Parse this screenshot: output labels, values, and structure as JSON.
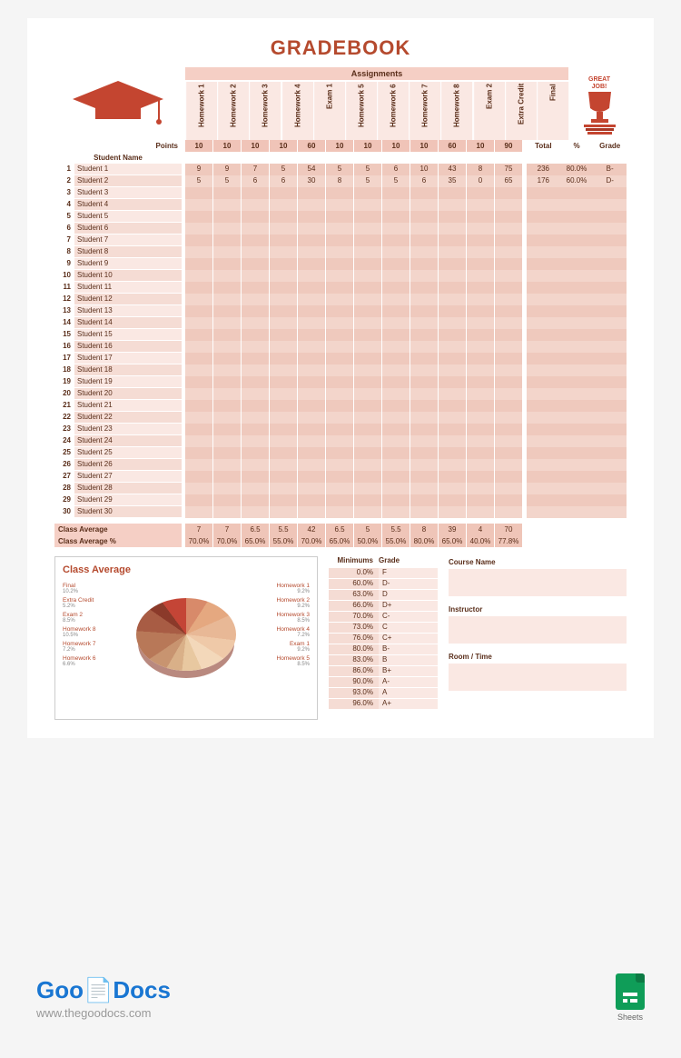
{
  "title": "GRADEBOOK",
  "assignments_label": "Assignments",
  "points_label": "Points",
  "student_name_label": "Student Name",
  "total_label": "Total",
  "pct_label": "%",
  "grade_label": "Grade",
  "class_avg_label": "Class Average",
  "class_avg_pct_label": "Class Average %",
  "assignments": [
    "Homework 1",
    "Homework 2",
    "Homework 3",
    "Homework 4",
    "Exam 1",
    "Homework 5",
    "Homework 6",
    "Homework 7",
    "Homework 8",
    "Exam 2",
    "Extra Credit",
    "Final"
  ],
  "points": [
    "10",
    "10",
    "10",
    "10",
    "60",
    "10",
    "10",
    "10",
    "10",
    "60",
    "10",
    "90"
  ],
  "students": [
    {
      "num": "1",
      "name": "Student 1",
      "scores": [
        "9",
        "9",
        "7",
        "5",
        "54",
        "5",
        "5",
        "6",
        "10",
        "43",
        "8",
        "75"
      ],
      "total": "236",
      "pct": "80.0%",
      "grade": "B-"
    },
    {
      "num": "2",
      "name": "Student 2",
      "scores": [
        "5",
        "5",
        "6",
        "6",
        "30",
        "8",
        "5",
        "5",
        "6",
        "35",
        "0",
        "65"
      ],
      "total": "176",
      "pct": "60.0%",
      "grade": "D-"
    },
    {
      "num": "3",
      "name": "Student 3",
      "scores": [
        "",
        "",
        "",
        "",
        "",
        "",
        "",
        "",
        "",
        "",
        "",
        ""
      ],
      "total": "",
      "pct": "",
      "grade": ""
    },
    {
      "num": "4",
      "name": "Student 4",
      "scores": [
        "",
        "",
        "",
        "",
        "",
        "",
        "",
        "",
        "",
        "",
        "",
        ""
      ],
      "total": "",
      "pct": "",
      "grade": ""
    },
    {
      "num": "5",
      "name": "Student 5",
      "scores": [
        "",
        "",
        "",
        "",
        "",
        "",
        "",
        "",
        "",
        "",
        "",
        ""
      ],
      "total": "",
      "pct": "",
      "grade": ""
    },
    {
      "num": "6",
      "name": "Student 6",
      "scores": [
        "",
        "",
        "",
        "",
        "",
        "",
        "",
        "",
        "",
        "",
        "",
        ""
      ],
      "total": "",
      "pct": "",
      "grade": ""
    },
    {
      "num": "7",
      "name": "Student 7",
      "scores": [
        "",
        "",
        "",
        "",
        "",
        "",
        "",
        "",
        "",
        "",
        "",
        ""
      ],
      "total": "",
      "pct": "",
      "grade": ""
    },
    {
      "num": "8",
      "name": "Student 8",
      "scores": [
        "",
        "",
        "",
        "",
        "",
        "",
        "",
        "",
        "",
        "",
        "",
        ""
      ],
      "total": "",
      "pct": "",
      "grade": ""
    },
    {
      "num": "9",
      "name": "Student 9",
      "scores": [
        "",
        "",
        "",
        "",
        "",
        "",
        "",
        "",
        "",
        "",
        "",
        ""
      ],
      "total": "",
      "pct": "",
      "grade": ""
    },
    {
      "num": "10",
      "name": "Student 10",
      "scores": [
        "",
        "",
        "",
        "",
        "",
        "",
        "",
        "",
        "",
        "",
        "",
        ""
      ],
      "total": "",
      "pct": "",
      "grade": ""
    },
    {
      "num": "11",
      "name": "Student 11",
      "scores": [
        "",
        "",
        "",
        "",
        "",
        "",
        "",
        "",
        "",
        "",
        "",
        ""
      ],
      "total": "",
      "pct": "",
      "grade": ""
    },
    {
      "num": "12",
      "name": "Student 12",
      "scores": [
        "",
        "",
        "",
        "",
        "",
        "",
        "",
        "",
        "",
        "",
        "",
        ""
      ],
      "total": "",
      "pct": "",
      "grade": ""
    },
    {
      "num": "13",
      "name": "Student 13",
      "scores": [
        "",
        "",
        "",
        "",
        "",
        "",
        "",
        "",
        "",
        "",
        "",
        ""
      ],
      "total": "",
      "pct": "",
      "grade": ""
    },
    {
      "num": "14",
      "name": "Student 14",
      "scores": [
        "",
        "",
        "",
        "",
        "",
        "",
        "",
        "",
        "",
        "",
        "",
        ""
      ],
      "total": "",
      "pct": "",
      "grade": ""
    },
    {
      "num": "15",
      "name": "Student 15",
      "scores": [
        "",
        "",
        "",
        "",
        "",
        "",
        "",
        "",
        "",
        "",
        "",
        ""
      ],
      "total": "",
      "pct": "",
      "grade": ""
    },
    {
      "num": "16",
      "name": "Student 16",
      "scores": [
        "",
        "",
        "",
        "",
        "",
        "",
        "",
        "",
        "",
        "",
        "",
        ""
      ],
      "total": "",
      "pct": "",
      "grade": ""
    },
    {
      "num": "17",
      "name": "Student 17",
      "scores": [
        "",
        "",
        "",
        "",
        "",
        "",
        "",
        "",
        "",
        "",
        "",
        ""
      ],
      "total": "",
      "pct": "",
      "grade": ""
    },
    {
      "num": "18",
      "name": "Student 18",
      "scores": [
        "",
        "",
        "",
        "",
        "",
        "",
        "",
        "",
        "",
        "",
        "",
        ""
      ],
      "total": "",
      "pct": "",
      "grade": ""
    },
    {
      "num": "19",
      "name": "Student 19",
      "scores": [
        "",
        "",
        "",
        "",
        "",
        "",
        "",
        "",
        "",
        "",
        "",
        ""
      ],
      "total": "",
      "pct": "",
      "grade": ""
    },
    {
      "num": "20",
      "name": "Student 20",
      "scores": [
        "",
        "",
        "",
        "",
        "",
        "",
        "",
        "",
        "",
        "",
        "",
        ""
      ],
      "total": "",
      "pct": "",
      "grade": ""
    },
    {
      "num": "21",
      "name": "Student 21",
      "scores": [
        "",
        "",
        "",
        "",
        "",
        "",
        "",
        "",
        "",
        "",
        "",
        ""
      ],
      "total": "",
      "pct": "",
      "grade": ""
    },
    {
      "num": "22",
      "name": "Student 22",
      "scores": [
        "",
        "",
        "",
        "",
        "",
        "",
        "",
        "",
        "",
        "",
        "",
        ""
      ],
      "total": "",
      "pct": "",
      "grade": ""
    },
    {
      "num": "23",
      "name": "Student 23",
      "scores": [
        "",
        "",
        "",
        "",
        "",
        "",
        "",
        "",
        "",
        "",
        "",
        ""
      ],
      "total": "",
      "pct": "",
      "grade": ""
    },
    {
      "num": "24",
      "name": "Student 24",
      "scores": [
        "",
        "",
        "",
        "",
        "",
        "",
        "",
        "",
        "",
        "",
        "",
        ""
      ],
      "total": "",
      "pct": "",
      "grade": ""
    },
    {
      "num": "25",
      "name": "Student 25",
      "scores": [
        "",
        "",
        "",
        "",
        "",
        "",
        "",
        "",
        "",
        "",
        "",
        ""
      ],
      "total": "",
      "pct": "",
      "grade": ""
    },
    {
      "num": "26",
      "name": "Student 26",
      "scores": [
        "",
        "",
        "",
        "",
        "",
        "",
        "",
        "",
        "",
        "",
        "",
        ""
      ],
      "total": "",
      "pct": "",
      "grade": ""
    },
    {
      "num": "27",
      "name": "Student 27",
      "scores": [
        "",
        "",
        "",
        "",
        "",
        "",
        "",
        "",
        "",
        "",
        "",
        ""
      ],
      "total": "",
      "pct": "",
      "grade": ""
    },
    {
      "num": "28",
      "name": "Student 28",
      "scores": [
        "",
        "",
        "",
        "",
        "",
        "",
        "",
        "",
        "",
        "",
        "",
        ""
      ],
      "total": "",
      "pct": "",
      "grade": ""
    },
    {
      "num": "29",
      "name": "Student 29",
      "scores": [
        "",
        "",
        "",
        "",
        "",
        "",
        "",
        "",
        "",
        "",
        "",
        ""
      ],
      "total": "",
      "pct": "",
      "grade": ""
    },
    {
      "num": "30",
      "name": "Student 30",
      "scores": [
        "",
        "",
        "",
        "",
        "",
        "",
        "",
        "",
        "",
        "",
        "",
        ""
      ],
      "total": "",
      "pct": "",
      "grade": ""
    }
  ],
  "class_avg": [
    "7",
    "7",
    "6.5",
    "5.5",
    "42",
    "6.5",
    "5",
    "5.5",
    "8",
    "39",
    "4",
    "70"
  ],
  "class_avg_pct": [
    "70.0%",
    "70.0%",
    "65.0%",
    "55.0%",
    "70.0%",
    "65.0%",
    "50.0%",
    "55.0%",
    "80.0%",
    "65.0%",
    "40.0%",
    "77.8%"
  ],
  "chart": {
    "title": "Class Average",
    "type": "pie",
    "slices": [
      {
        "label": "Homework 1",
        "pct": "9.2%",
        "color": "#d88a6a"
      },
      {
        "label": "Homework 2",
        "pct": "9.2%",
        "color": "#e5a880"
      },
      {
        "label": "Homework 3",
        "pct": "8.5%",
        "color": "#e8b896"
      },
      {
        "label": "Homework 4",
        "pct": "7.2%",
        "color": "#efc9a8"
      },
      {
        "label": "Exam 1",
        "pct": "9.2%",
        "color": "#f3d8ba"
      },
      {
        "label": "Homework 5",
        "pct": "8.5%",
        "color": "#e8c8a0"
      },
      {
        "label": "Homework 6",
        "pct": "6.6%",
        "color": "#d9b088"
      },
      {
        "label": "Homework 7",
        "pct": "7.2%",
        "color": "#c89470"
      },
      {
        "label": "Homework 8",
        "pct": "10.5%",
        "color": "#b87858"
      },
      {
        "label": "Exam 2",
        "pct": "8.5%",
        "color": "#a85c44"
      },
      {
        "label": "Extra Credit",
        "pct": "5.2%",
        "color": "#8b3a2a"
      },
      {
        "label": "Final",
        "pct": "10.2%",
        "color": "#c44536"
      }
    ]
  },
  "minimums_label": "Minimums",
  "minimums": [
    {
      "min": "0.0%",
      "grade": "F"
    },
    {
      "min": "60.0%",
      "grade": "D-"
    },
    {
      "min": "63.0%",
      "grade": "D"
    },
    {
      "min": "66.0%",
      "grade": "D+"
    },
    {
      "min": "70.0%",
      "grade": "C-"
    },
    {
      "min": "73.0%",
      "grade": "C"
    },
    {
      "min": "76.0%",
      "grade": "C+"
    },
    {
      "min": "80.0%",
      "grade": "B-"
    },
    {
      "min": "83.0%",
      "grade": "B"
    },
    {
      "min": "86.0%",
      "grade": "B+"
    },
    {
      "min": "90.0%",
      "grade": "A-"
    },
    {
      "min": "93.0%",
      "grade": "A"
    },
    {
      "min": "96.0%",
      "grade": "A+"
    }
  ],
  "info": {
    "course_label": "Course Name",
    "instructor_label": "Instructor",
    "room_label": "Room / Time"
  },
  "footer": {
    "logo1": "Goo",
    "logo2": "Docs",
    "url": "www.thegoodocs.com",
    "sheets": "Sheets"
  }
}
